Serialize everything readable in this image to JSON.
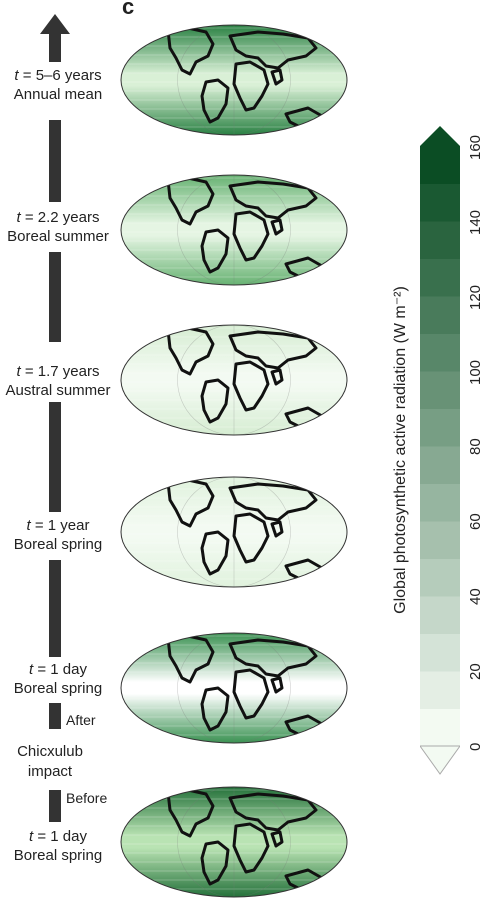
{
  "panel_letter": "c",
  "timeline": [
    {
      "t_prefix": "t",
      "t_value": " = 5–6 years",
      "season": "Annual mean"
    },
    {
      "t_prefix": "t",
      "t_value": " = 2.2 years",
      "season": "Boreal summer"
    },
    {
      "t_prefix": "t",
      "t_value": " = 1.7 years",
      "season": "Austral summer"
    },
    {
      "t_prefix": "t",
      "t_value": " = 1 year",
      "season": "Boreal spring"
    },
    {
      "t_prefix": "t",
      "t_value": " = 1 day",
      "season": "Boreal spring"
    },
    {
      "t_prefix": "t",
      "t_value": " = 1 day",
      "season": "Boreal spring"
    }
  ],
  "event": {
    "after": "After",
    "name_line1": "Chicxulub",
    "name_line2": "impact",
    "before": "Before"
  },
  "colorbar": {
    "label": "Global photosynthetic active radiation (W m⁻²)",
    "ticks": [
      "0",
      "20",
      "40",
      "60",
      "80",
      "100",
      "120",
      "140",
      "160"
    ],
    "min": 0,
    "max": 160,
    "color_low": "#f3faf2",
    "color_high": "#0b4d24"
  },
  "maps": [
    {
      "level": 0.35,
      "description_colors": [
        "#1f7a3a",
        "#d9f0d6"
      ]
    },
    {
      "level": 0.2,
      "description_colors": [
        "#5fae6b",
        "#e5f5e3"
      ]
    },
    {
      "level": 0.05,
      "description_colors": [
        "#d4ecd0",
        "#f3faf2"
      ]
    },
    {
      "level": 0.03,
      "description_colors": [
        "#dff2dc",
        "#f3faf2"
      ]
    },
    {
      "level": 0.5,
      "description_colors": [
        "#2e8b47",
        "#ffffff"
      ]
    },
    {
      "level": 0.6,
      "description_colors": [
        "#1b6a33",
        "#b9e3b3"
      ]
    }
  ]
}
